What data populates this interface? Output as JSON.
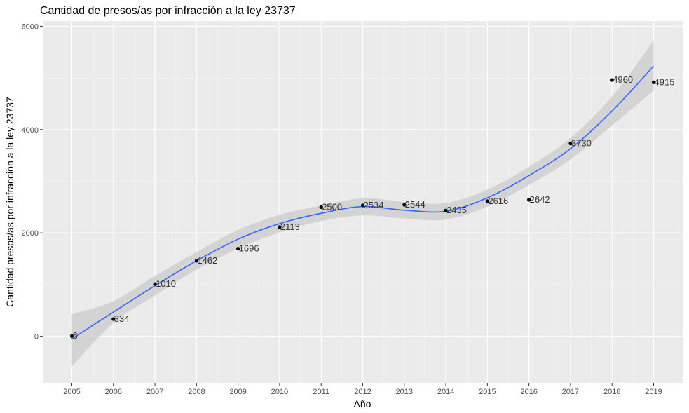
{
  "chart_data": {
    "type": "scatter",
    "title": "Cantidad de presos/as por infracción a la ley 23737",
    "xlabel": "Año",
    "ylabel": "Cantidad presos/as por infraccion a la ley 23737",
    "x": [
      2005,
      2006,
      2007,
      2008,
      2009,
      2010,
      2011,
      2012,
      2013,
      2014,
      2015,
      2016,
      2017,
      2018,
      2019
    ],
    "y": [
      6,
      334,
      1010,
      1462,
      1696,
      2113,
      2500,
      2534,
      2544,
      2435,
      2616,
      2642,
      3730,
      4960,
      4915
    ],
    "data_labels": [
      "6",
      "334",
      "1010",
      "1462",
      "1696",
      "2113",
      "2500",
      "2534",
      "2544",
      "2435",
      "2616",
      "2642",
      "3730",
      "4960",
      "4915"
    ],
    "x_ticks": [
      "2005",
      "2006",
      "2007",
      "2008",
      "2009",
      "2010",
      "2011",
      "2012",
      "2013",
      "2014",
      "2015",
      "2016",
      "2017",
      "2018",
      "2019"
    ],
    "y_ticks": [
      {
        "value": 0,
        "label": "0"
      },
      {
        "value": 2000,
        "label": "2000"
      },
      {
        "value": 4000,
        "label": "4000"
      },
      {
        "value": 6000,
        "label": "6000"
      }
    ],
    "xlim": [
      2004.3,
      2019.7
    ],
    "ylim": [
      -900,
      6100
    ],
    "smooth": {
      "x": [
        2005,
        2006,
        2007,
        2008,
        2009,
        2010,
        2011,
        2012,
        2013,
        2014,
        2015,
        2016,
        2017,
        2018,
        2019
      ],
      "fit": [
        -50,
        470,
        980,
        1460,
        1880,
        2180,
        2380,
        2510,
        2440,
        2420,
        2680,
        3110,
        3630,
        4360,
        5230
      ],
      "lower": [
        -580,
        260,
        790,
        1290,
        1700,
        2010,
        2230,
        2340,
        2280,
        2260,
        2510,
        2930,
        3420,
        4080,
        4750
      ],
      "upper": [
        430,
        680,
        1170,
        1630,
        2060,
        2350,
        2530,
        2670,
        2600,
        2580,
        2840,
        3280,
        3840,
        4640,
        5720
      ]
    },
    "colors": {
      "panel": "#ebebeb",
      "grid_major": "#ffffff",
      "grid_minor": "#f5f5f5",
      "smooth_line": "#3366ff",
      "ribbon": "#cfcfcf",
      "point": "#000000",
      "label": "#333333"
    },
    "grid": true,
    "legend": "none"
  }
}
